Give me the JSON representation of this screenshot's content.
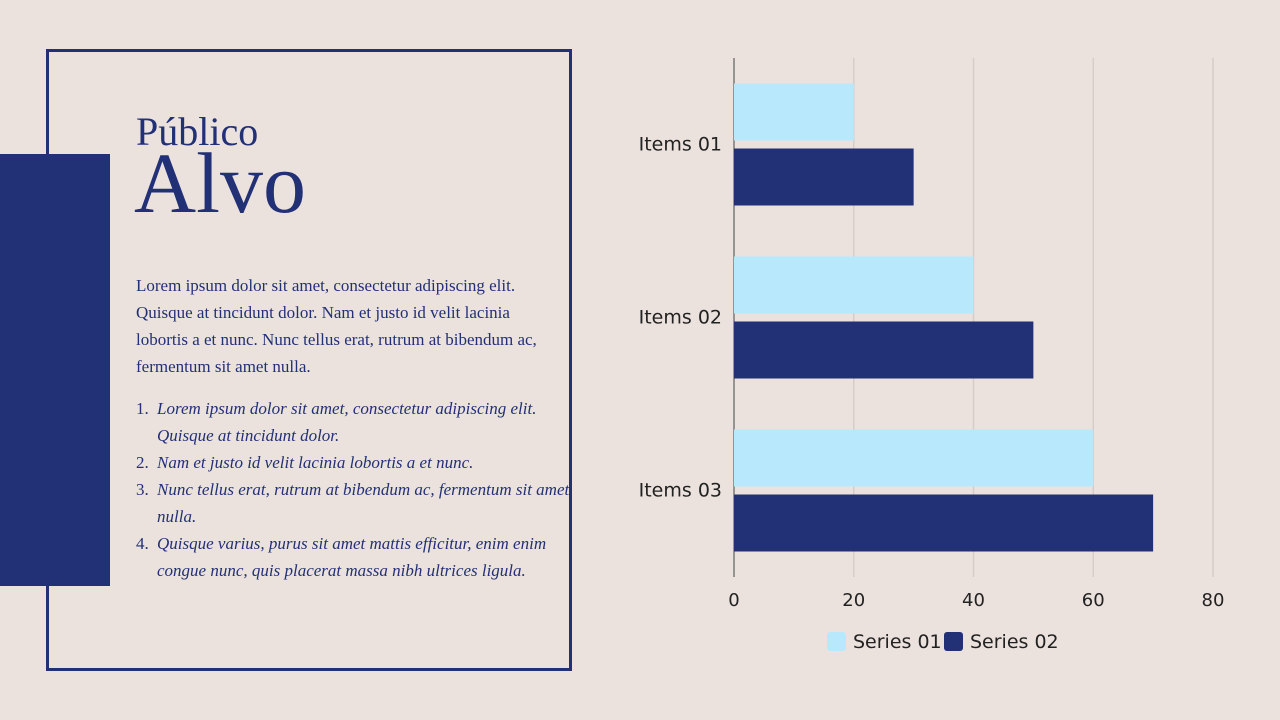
{
  "title": {
    "line1": "Público",
    "line2": "Alvo"
  },
  "body": {
    "paragraph": "Lorem ipsum dolor sit amet, consectetur adipiscing elit. Quisque at tincidunt dolor. Nam et justo id velit lacinia lobortis a et nunc. Nunc tellus erat, rutrum at bibendum ac, fermentum sit amet nulla.",
    "list": [
      "Lorem ipsum dolor sit amet, consectetur adipiscing elit. Quisque at tincidunt dolor.",
      "Nam et justo id velit lacinia lobortis a et nunc.",
      "Nunc tellus erat, rutrum at bibendum ac, fermentum sit amet nulla.",
      "Quisque varius, purus sit amet mattis efficitur, enim enim congue nunc, quis placerat massa nibh ultrices ligula."
    ]
  },
  "colors": {
    "primary": "#223076",
    "light": "#b8e8fb",
    "background": "#ebe2dd",
    "grid": "#d6cdc8"
  },
  "chart_data": {
    "type": "bar",
    "orientation": "horizontal",
    "categories": [
      "Items 01",
      "Items 02",
      "Items 03"
    ],
    "series": [
      {
        "name": "Series 01",
        "values": [
          20,
          40,
          60
        ]
      },
      {
        "name": "Series 02",
        "values": [
          30,
          50,
          70
        ]
      }
    ],
    "xlim": [
      0,
      80
    ],
    "xticks": [
      "0",
      "20",
      "40",
      "60",
      "80"
    ],
    "grid": true,
    "legend": "bottom"
  }
}
